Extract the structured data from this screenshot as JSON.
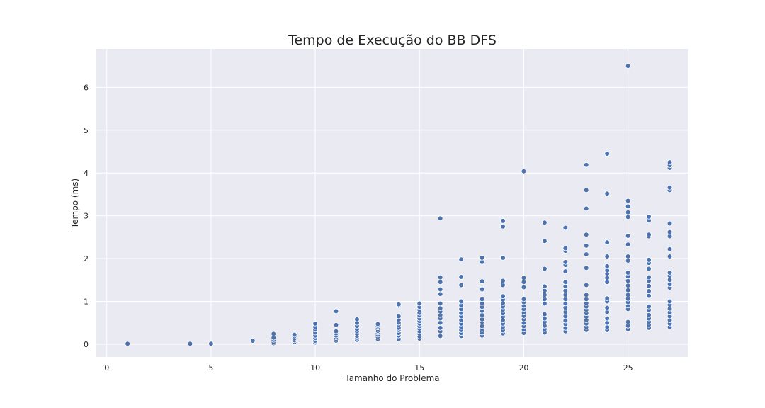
{
  "colors": {
    "background": "#eaeaf2",
    "grid": "#ffffff",
    "point": "#4c72b0",
    "point_edge": "#ffffff"
  },
  "chart_data": {
    "type": "scatter",
    "title": "Tempo de Execução do BB DFS",
    "xlabel": "Tamanho do Problema",
    "ylabel": "Tempo (ms)",
    "xlim": [
      -0.5,
      27.9
    ],
    "ylim": [
      -0.3,
      6.9
    ],
    "xticks": [
      0,
      5,
      10,
      15,
      20,
      25
    ],
    "yticks": [
      0,
      1,
      2,
      3,
      4,
      5,
      6
    ],
    "grid": true,
    "points": [
      [
        1,
        0.01
      ],
      [
        4,
        0.01
      ],
      [
        5,
        0.01
      ],
      [
        7,
        0.08
      ],
      [
        8,
        0.02
      ],
      [
        8,
        0.05
      ],
      [
        8,
        0.1
      ],
      [
        8,
        0.15
      ],
      [
        8,
        0.24
      ],
      [
        9,
        0.05
      ],
      [
        9,
        0.09
      ],
      [
        9,
        0.13
      ],
      [
        9,
        0.18
      ],
      [
        9,
        0.22
      ],
      [
        10,
        0.04
      ],
      [
        10,
        0.08
      ],
      [
        10,
        0.14
      ],
      [
        10,
        0.2
      ],
      [
        10,
        0.27
      ],
      [
        10,
        0.34
      ],
      [
        10,
        0.4
      ],
      [
        10,
        0.48
      ],
      [
        11,
        0.08
      ],
      [
        11,
        0.12
      ],
      [
        11,
        0.16
      ],
      [
        11,
        0.2
      ],
      [
        11,
        0.25
      ],
      [
        11,
        0.3
      ],
      [
        11,
        0.45
      ],
      [
        11,
        0.77
      ],
      [
        12,
        0.1
      ],
      [
        12,
        0.15
      ],
      [
        12,
        0.19
      ],
      [
        12,
        0.24
      ],
      [
        12,
        0.3
      ],
      [
        12,
        0.35
      ],
      [
        12,
        0.42
      ],
      [
        12,
        0.5
      ],
      [
        12,
        0.58
      ],
      [
        13,
        0.12
      ],
      [
        13,
        0.17
      ],
      [
        13,
        0.22
      ],
      [
        13,
        0.27
      ],
      [
        13,
        0.31
      ],
      [
        13,
        0.35
      ],
      [
        13,
        0.39
      ],
      [
        13,
        0.43
      ],
      [
        13,
        0.47
      ],
      [
        14,
        0.12
      ],
      [
        14,
        0.2
      ],
      [
        14,
        0.26
      ],
      [
        14,
        0.33
      ],
      [
        14,
        0.38
      ],
      [
        14,
        0.45
      ],
      [
        14,
        0.5
      ],
      [
        14,
        0.57
      ],
      [
        14,
        0.65
      ],
      [
        14,
        0.9
      ],
      [
        14,
        0.93
      ],
      [
        15,
        0.13
      ],
      [
        15,
        0.18
      ],
      [
        15,
        0.24
      ],
      [
        15,
        0.3
      ],
      [
        15,
        0.36
      ],
      [
        15,
        0.42
      ],
      [
        15,
        0.48
      ],
      [
        15,
        0.54
      ],
      [
        15,
        0.6
      ],
      [
        15,
        0.67
      ],
      [
        15,
        0.73
      ],
      [
        15,
        0.8
      ],
      [
        15,
        0.87
      ],
      [
        15,
        0.95
      ],
      [
        16,
        0.19
      ],
      [
        16,
        0.3
      ],
      [
        16,
        0.38
      ],
      [
        16,
        0.5
      ],
      [
        16,
        0.6
      ],
      [
        16,
        0.68
      ],
      [
        16,
        0.76
      ],
      [
        16,
        0.84
      ],
      [
        16,
        0.95
      ],
      [
        16,
        1.17
      ],
      [
        16,
        1.28
      ],
      [
        16,
        1.45
      ],
      [
        16,
        1.56
      ],
      [
        16,
        2.94
      ],
      [
        17,
        0.19
      ],
      [
        17,
        0.26
      ],
      [
        17,
        0.33
      ],
      [
        17,
        0.4
      ],
      [
        17,
        0.48
      ],
      [
        17,
        0.56
      ],
      [
        17,
        0.65
      ],
      [
        17,
        0.73
      ],
      [
        17,
        0.82
      ],
      [
        17,
        0.91
      ],
      [
        17,
        1.0
      ],
      [
        17,
        1.38
      ],
      [
        17,
        1.57
      ],
      [
        17,
        1.98
      ],
      [
        18,
        0.2
      ],
      [
        18,
        0.27
      ],
      [
        18,
        0.35
      ],
      [
        18,
        0.42
      ],
      [
        18,
        0.52
      ],
      [
        18,
        0.58
      ],
      [
        18,
        0.68
      ],
      [
        18,
        0.78
      ],
      [
        18,
        0.87
      ],
      [
        18,
        0.96
      ],
      [
        18,
        1.05
      ],
      [
        18,
        1.28
      ],
      [
        18,
        1.47
      ],
      [
        18,
        1.92
      ],
      [
        18,
        2.02
      ],
      [
        19,
        0.25
      ],
      [
        19,
        0.32
      ],
      [
        19,
        0.4
      ],
      [
        19,
        0.48
      ],
      [
        19,
        0.56
      ],
      [
        19,
        0.64
      ],
      [
        19,
        0.72
      ],
      [
        19,
        0.8
      ],
      [
        19,
        0.88
      ],
      [
        19,
        0.96
      ],
      [
        19,
        1.04
      ],
      [
        19,
        1.12
      ],
      [
        19,
        1.38
      ],
      [
        19,
        1.48
      ],
      [
        19,
        2.02
      ],
      [
        19,
        2.75
      ],
      [
        19,
        2.88
      ],
      [
        20,
        0.26
      ],
      [
        20,
        0.34
      ],
      [
        20,
        0.42
      ],
      [
        20,
        0.5
      ],
      [
        20,
        0.58
      ],
      [
        20,
        0.66
      ],
      [
        20,
        0.74
      ],
      [
        20,
        0.82
      ],
      [
        20,
        0.9
      ],
      [
        20,
        0.98
      ],
      [
        20,
        1.05
      ],
      [
        20,
        1.33
      ],
      [
        20,
        1.45
      ],
      [
        20,
        1.55
      ],
      [
        20,
        4.04
      ],
      [
        21,
        0.27
      ],
      [
        21,
        0.35
      ],
      [
        21,
        0.43
      ],
      [
        21,
        0.52
      ],
      [
        21,
        0.6
      ],
      [
        21,
        0.7
      ],
      [
        21,
        0.95
      ],
      [
        21,
        1.05
      ],
      [
        21,
        1.15
      ],
      [
        21,
        1.25
      ],
      [
        21,
        1.35
      ],
      [
        21,
        1.76
      ],
      [
        21,
        2.41
      ],
      [
        21,
        2.84
      ],
      [
        22,
        0.3
      ],
      [
        22,
        0.38
      ],
      [
        22,
        0.47
      ],
      [
        22,
        0.55
      ],
      [
        22,
        0.65
      ],
      [
        22,
        0.75
      ],
      [
        22,
        0.85
      ],
      [
        22,
        0.95
      ],
      [
        22,
        1.05
      ],
      [
        22,
        1.15
      ],
      [
        22,
        1.25
      ],
      [
        22,
        1.35
      ],
      [
        22,
        1.45
      ],
      [
        22,
        1.7
      ],
      [
        22,
        1.85
      ],
      [
        22,
        1.92
      ],
      [
        22,
        2.18
      ],
      [
        22,
        2.24
      ],
      [
        22,
        2.72
      ],
      [
        23,
        0.33
      ],
      [
        23,
        0.4
      ],
      [
        23,
        0.48
      ],
      [
        23,
        0.56
      ],
      [
        23,
        0.64
      ],
      [
        23,
        0.72
      ],
      [
        23,
        0.8
      ],
      [
        23,
        0.88
      ],
      [
        23,
        0.96
      ],
      [
        23,
        1.05
      ],
      [
        23,
        1.15
      ],
      [
        23,
        1.38
      ],
      [
        23,
        1.78
      ],
      [
        23,
        2.1
      ],
      [
        23,
        2.3
      ],
      [
        23,
        2.56
      ],
      [
        23,
        3.17
      ],
      [
        23,
        3.6
      ],
      [
        23,
        4.19
      ],
      [
        24,
        0.33
      ],
      [
        24,
        0.4
      ],
      [
        24,
        0.5
      ],
      [
        24,
        0.6
      ],
      [
        24,
        0.75
      ],
      [
        24,
        0.85
      ],
      [
        24,
        1.0
      ],
      [
        24,
        1.07
      ],
      [
        24,
        1.45
      ],
      [
        24,
        1.55
      ],
      [
        24,
        1.65
      ],
      [
        24,
        1.72
      ],
      [
        24,
        1.82
      ],
      [
        24,
        2.05
      ],
      [
        24,
        2.38
      ],
      [
        24,
        3.52
      ],
      [
        24,
        4.45
      ],
      [
        25,
        0.35
      ],
      [
        25,
        0.43
      ],
      [
        25,
        0.52
      ],
      [
        25,
        0.82
      ],
      [
        25,
        0.9
      ],
      [
        25,
        0.98
      ],
      [
        25,
        1.06
      ],
      [
        25,
        1.15
      ],
      [
        25,
        1.26
      ],
      [
        25,
        1.37
      ],
      [
        25,
        1.48
      ],
      [
        25,
        1.58
      ],
      [
        25,
        1.67
      ],
      [
        25,
        1.95
      ],
      [
        25,
        2.05
      ],
      [
        25,
        2.33
      ],
      [
        25,
        2.53
      ],
      [
        25,
        2.97
      ],
      [
        25,
        3.08
      ],
      [
        25,
        3.22
      ],
      [
        25,
        3.35
      ],
      [
        25,
        6.5
      ],
      [
        26,
        0.38
      ],
      [
        26,
        0.45
      ],
      [
        26,
        0.52
      ],
      [
        26,
        0.6
      ],
      [
        26,
        0.68
      ],
      [
        26,
        0.8
      ],
      [
        26,
        0.88
      ],
      [
        26,
        1.13
      ],
      [
        26,
        1.24
      ],
      [
        26,
        1.36
      ],
      [
        26,
        1.48
      ],
      [
        26,
        1.56
      ],
      [
        26,
        1.76
      ],
      [
        26,
        1.9
      ],
      [
        26,
        1.97
      ],
      [
        26,
        2.52
      ],
      [
        26,
        2.56
      ],
      [
        26,
        2.89
      ],
      [
        26,
        2.98
      ],
      [
        27,
        0.4
      ],
      [
        27,
        0.48
      ],
      [
        27,
        0.56
      ],
      [
        27,
        0.65
      ],
      [
        27,
        0.74
      ],
      [
        27,
        0.83
      ],
      [
        27,
        0.92
      ],
      [
        27,
        1.0
      ],
      [
        27,
        1.32
      ],
      [
        27,
        1.4
      ],
      [
        27,
        1.5
      ],
      [
        27,
        1.6
      ],
      [
        27,
        1.67
      ],
      [
        27,
        2.05
      ],
      [
        27,
        2.22
      ],
      [
        27,
        2.52
      ],
      [
        27,
        2.62
      ],
      [
        27,
        2.82
      ],
      [
        27,
        3.6
      ],
      [
        27,
        3.66
      ],
      [
        27,
        4.12
      ],
      [
        27,
        4.18
      ],
      [
        27,
        4.25
      ]
    ]
  }
}
